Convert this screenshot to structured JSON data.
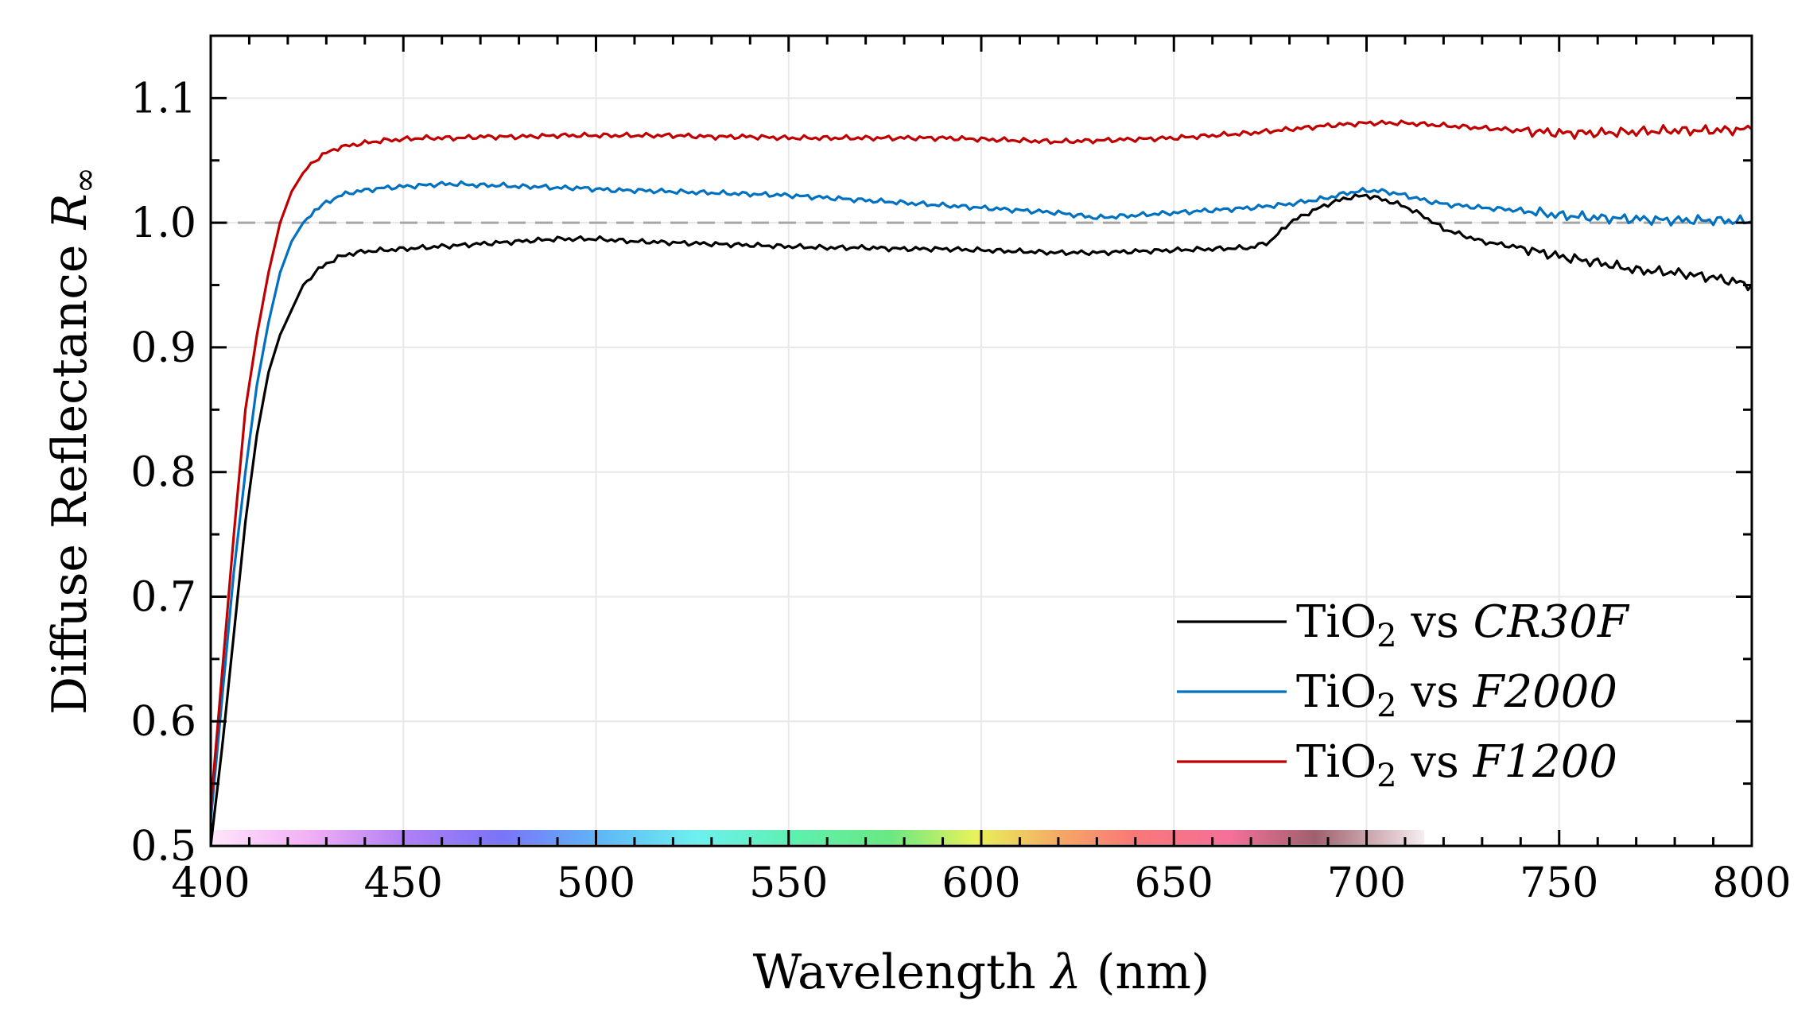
{
  "chart_data": {
    "type": "line",
    "xlabel_prefix": "Wavelength ",
    "xlabel_symbol": "λ",
    "xlabel_suffix": " (nm)",
    "ylabel_prefix": "Diffuse Reflectance ",
    "ylabel_symbol": "R",
    "ylabel_subscript": "∞",
    "xlim": [
      400,
      800
    ],
    "ylim": [
      0.5,
      1.15
    ],
    "xticks": [
      "400",
      "450",
      "500",
      "550",
      "600",
      "650",
      "700",
      "750",
      "800"
    ],
    "yticks": [
      "0.5",
      "0.6",
      "0.7",
      "0.8",
      "0.9",
      "1.0",
      "1.1"
    ],
    "grid": true,
    "reference_line": {
      "y": 1.0,
      "style": "dashed",
      "color": "#a6a6a6"
    },
    "legend_position": "bottom-right",
    "visible_spectrum_bar": {
      "from": 400,
      "to": 715
    },
    "series": [
      {
        "name": "TiO2 vs CR30F",
        "legend_base": "TiO",
        "legend_sub": "2",
        "legend_mid": " vs ",
        "legend_ital": "CR30F",
        "color": "#000000",
        "x": [
          400,
          403,
          406,
          409,
          412,
          415,
          418,
          421,
          424,
          427,
          430,
          433,
          436,
          440,
          445,
          450,
          455,
          460,
          465,
          470,
          475,
          480,
          485,
          490,
          495,
          500,
          505,
          510,
          520,
          530,
          540,
          550,
          560,
          570,
          580,
          590,
          600,
          610,
          620,
          630,
          640,
          650,
          660,
          670,
          675,
          680,
          685,
          690,
          695,
          700,
          705,
          710,
          715,
          720,
          725,
          730,
          740,
          750,
          760,
          770,
          780,
          790,
          800
        ],
        "y": [
          0.5,
          0.58,
          0.67,
          0.76,
          0.83,
          0.88,
          0.91,
          0.93,
          0.95,
          0.96,
          0.967,
          0.972,
          0.975,
          0.977,
          0.978,
          0.979,
          0.98,
          0.981,
          0.982,
          0.983,
          0.984,
          0.985,
          0.986,
          0.987,
          0.987,
          0.987,
          0.986,
          0.985,
          0.984,
          0.983,
          0.982,
          0.981,
          0.98,
          0.98,
          0.979,
          0.979,
          0.978,
          0.977,
          0.976,
          0.976,
          0.977,
          0.978,
          0.979,
          0.98,
          0.985,
          1.0,
          1.008,
          1.015,
          1.02,
          1.022,
          1.018,
          1.013,
          1.005,
          0.995,
          0.99,
          0.985,
          0.98,
          0.973,
          0.968,
          0.962,
          0.96,
          0.956,
          0.95
        ]
      },
      {
        "name": "TiO2 vs F2000",
        "legend_base": "TiO",
        "legend_sub": "2",
        "legend_mid": " vs ",
        "legend_ital": "F2000",
        "color": "#0070c0",
        "x": [
          400,
          403,
          406,
          409,
          412,
          415,
          418,
          421,
          424,
          427,
          430,
          433,
          436,
          440,
          445,
          450,
          455,
          460,
          465,
          470,
          475,
          480,
          485,
          490,
          495,
          500,
          505,
          510,
          520,
          530,
          540,
          550,
          560,
          570,
          580,
          590,
          600,
          610,
          620,
          630,
          640,
          650,
          660,
          670,
          680,
          690,
          695,
          700,
          705,
          710,
          715,
          720,
          730,
          740,
          750,
          760,
          770,
          780,
          790,
          800
        ],
        "y": [
          0.52,
          0.62,
          0.72,
          0.8,
          0.87,
          0.92,
          0.96,
          0.985,
          1.0,
          1.01,
          1.016,
          1.021,
          1.024,
          1.026,
          1.028,
          1.029,
          1.03,
          1.031,
          1.031,
          1.03,
          1.03,
          1.029,
          1.029,
          1.028,
          1.028,
          1.027,
          1.026,
          1.026,
          1.025,
          1.024,
          1.023,
          1.022,
          1.02,
          1.018,
          1.016,
          1.014,
          1.012,
          1.01,
          1.008,
          1.004,
          1.006,
          1.008,
          1.01,
          1.012,
          1.015,
          1.02,
          1.024,
          1.026,
          1.025,
          1.022,
          1.018,
          1.015,
          1.012,
          1.01,
          1.006,
          1.004,
          1.003,
          1.002,
          1.002,
          1.001
        ]
      },
      {
        "name": "TiO2 vs F1200",
        "legend_base": "TiO",
        "legend_sub": "2",
        "legend_mid": " vs ",
        "legend_ital": "F1200",
        "color": "#c00000",
        "x": [
          400,
          403,
          406,
          409,
          412,
          415,
          418,
          421,
          424,
          427,
          430,
          433,
          436,
          440,
          445,
          450,
          455,
          460,
          465,
          470,
          480,
          490,
          500,
          510,
          520,
          530,
          540,
          550,
          560,
          570,
          580,
          590,
          600,
          610,
          620,
          630,
          640,
          650,
          660,
          670,
          680,
          690,
          700,
          710,
          720,
          730,
          740,
          750,
          760,
          770,
          780,
          790,
          800
        ],
        "y": [
          0.53,
          0.64,
          0.75,
          0.85,
          0.91,
          0.96,
          1.0,
          1.025,
          1.04,
          1.05,
          1.056,
          1.06,
          1.062,
          1.064,
          1.066,
          1.067,
          1.068,
          1.068,
          1.068,
          1.069,
          1.069,
          1.07,
          1.07,
          1.07,
          1.07,
          1.069,
          1.069,
          1.068,
          1.068,
          1.068,
          1.068,
          1.068,
          1.067,
          1.066,
          1.065,
          1.066,
          1.067,
          1.068,
          1.07,
          1.072,
          1.075,
          1.078,
          1.08,
          1.08,
          1.078,
          1.076,
          1.074,
          1.072,
          1.072,
          1.073,
          1.074,
          1.074,
          1.075
        ]
      }
    ]
  }
}
